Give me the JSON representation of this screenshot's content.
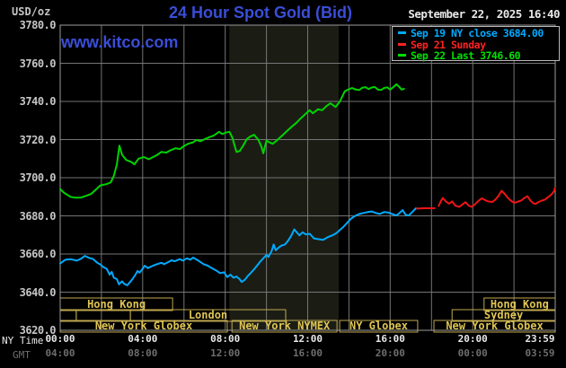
{
  "header": {
    "unit": "USD/oz",
    "title": "24 Hour Spot Gold (Bid)",
    "datetime": "September 22, 2025 16:40",
    "url": "www.kitco.com"
  },
  "axis_footer": {
    "ny_label": "NY Time",
    "gmt_label": "GMT"
  },
  "theme": {
    "background": "#000000",
    "title_blue": "#3a4ed8",
    "text_bright": "#e8e8e8",
    "text_dim": "#c6c6c6",
    "text_gray": "#6e6e6e",
    "grid": "#757575",
    "plot_border": "#9b9b9b",
    "band": "#1b1d15",
    "session_border": "#bfa94e",
    "session_text": "#dfc553",
    "cyan": "#00aaff",
    "red": "#ee1515",
    "green": "#00d300"
  },
  "legend": {
    "items": [
      {
        "text": "Sep 19 NY close 3684.00",
        "color": "#00aaff"
      },
      {
        "text": "Sep 21 Sunday",
        "color": "#ff2222"
      },
      {
        "text": "Sep 22 Last 3746.60",
        "color": "#00e000"
      }
    ]
  },
  "chart_data": {
    "type": "line",
    "title": "24 Hour Spot Gold (Bid)",
    "ylabel": "USD/oz",
    "ylim": [
      3620,
      3780
    ],
    "y_ticks": [
      "3780.0",
      "3760.0",
      "3740.0",
      "3720.0",
      "3700.0",
      "3680.0",
      "3660.0",
      "3640.0",
      "3620.0"
    ],
    "x_ticks": [
      {
        "h": 0,
        "ny": "00:00",
        "gmt": "04:00"
      },
      {
        "h": 4,
        "ny": "04:00",
        "gmt": "08:00"
      },
      {
        "h": 8,
        "ny": "08:00",
        "gmt": "12:00"
      },
      {
        "h": 12,
        "ny": "12:00",
        "gmt": "16:00"
      },
      {
        "h": 16,
        "ny": "16:00",
        "gmt": "20:00"
      },
      {
        "h": 20,
        "ny": "20:00",
        "gmt": "00:00"
      },
      {
        "h": 23.983,
        "ny": "23:59",
        "gmt": "03:59"
      }
    ],
    "grid": {
      "x_step_hours": 2,
      "y_step": 20
    },
    "shaded_band_hours": [
      8.2,
      13.5
    ],
    "sessions": [
      {
        "row": 0,
        "start_h": 0,
        "end_h": 5.45,
        "label": "Hong Kong"
      },
      {
        "row": 0,
        "start_h": 20.55,
        "end_h": 24,
        "label": "Hong Kong"
      },
      {
        "row": 1,
        "start_h": 0,
        "end_h": 0.78,
        "label": ""
      },
      {
        "row": 1,
        "start_h": 0.78,
        "end_h": 3.4,
        "label": ""
      },
      {
        "row": 1,
        "start_h": 3.4,
        "end_h": 10.93,
        "label": "London"
      },
      {
        "row": 1,
        "start_h": 19.0,
        "end_h": 24,
        "label": "Sydney"
      },
      {
        "row": 2,
        "start_h": 0,
        "end_h": 8.1,
        "label": "New York Globex"
      },
      {
        "row": 2,
        "start_h": 8.33,
        "end_h": 13.42,
        "label": "New York NYMEX"
      },
      {
        "row": 2,
        "start_h": 13.55,
        "end_h": 17.33,
        "label": "NY Globex"
      },
      {
        "row": 2,
        "start_h": 18.12,
        "end_h": 24,
        "label": "New York Globex"
      }
    ],
    "series": [
      {
        "name": "Sep 19 NY close",
        "value": "3684.00",
        "color": "#00aaff",
        "points": [
          [
            0,
            3655
          ],
          [
            0.25,
            3657
          ],
          [
            0.5,
            3657.3
          ],
          [
            0.8,
            3656.5
          ],
          [
            1.0,
            3657.5
          ],
          [
            1.2,
            3659
          ],
          [
            1.4,
            3658
          ],
          [
            1.6,
            3657.3
          ],
          [
            1.8,
            3655.4
          ],
          [
            1.95,
            3654.5
          ],
          [
            2.1,
            3653.1
          ],
          [
            2.25,
            3652.3
          ],
          [
            2.4,
            3649.2
          ],
          [
            2.5,
            3650.7
          ],
          [
            2.6,
            3647.6
          ],
          [
            2.75,
            3646.8
          ],
          [
            2.85,
            3644.1
          ],
          [
            3.0,
            3645.7
          ],
          [
            3.1,
            3644.4
          ],
          [
            3.25,
            3643.6
          ],
          [
            3.4,
            3645.5
          ],
          [
            3.5,
            3646.8
          ],
          [
            3.65,
            3649.2
          ],
          [
            3.75,
            3651.1
          ],
          [
            3.85,
            3650.2
          ],
          [
            4.0,
            3652.3
          ],
          [
            4.1,
            3653.9
          ],
          [
            4.25,
            3652.6
          ],
          [
            4.5,
            3653.9
          ],
          [
            4.7,
            3654.7
          ],
          [
            4.9,
            3655.4
          ],
          [
            5.05,
            3654.7
          ],
          [
            5.25,
            3655.8
          ],
          [
            5.4,
            3656.7
          ],
          [
            5.55,
            3656.2
          ],
          [
            5.8,
            3657.3
          ],
          [
            5.95,
            3656.5
          ],
          [
            6.15,
            3657.8
          ],
          [
            6.3,
            3657
          ],
          [
            6.45,
            3658.1
          ],
          [
            6.6,
            3657.2
          ],
          [
            6.8,
            3655.8
          ],
          [
            6.95,
            3654.7
          ],
          [
            7.15,
            3653.9
          ],
          [
            7.4,
            3652.3
          ],
          [
            7.6,
            3651.1
          ],
          [
            7.75,
            3650
          ],
          [
            7.95,
            3650.4
          ],
          [
            8.1,
            3647.9
          ],
          [
            8.25,
            3649.2
          ],
          [
            8.4,
            3647.6
          ],
          [
            8.55,
            3648.2
          ],
          [
            8.7,
            3646.8
          ],
          [
            8.8,
            3645.3
          ],
          [
            8.95,
            3646.5
          ],
          [
            9.1,
            3648.5
          ],
          [
            9.25,
            3650.2
          ],
          [
            9.4,
            3652
          ],
          [
            9.55,
            3654
          ],
          [
            9.7,
            3656
          ],
          [
            9.85,
            3657.8
          ],
          [
            10.0,
            3659.5
          ],
          [
            10.1,
            3658.5
          ],
          [
            10.25,
            3661.5
          ],
          [
            10.35,
            3665
          ],
          [
            10.45,
            3662
          ],
          [
            10.6,
            3663.5
          ],
          [
            10.75,
            3664.5
          ],
          [
            10.9,
            3665
          ],
          [
            11.05,
            3667
          ],
          [
            11.2,
            3669.5
          ],
          [
            11.35,
            3672.9
          ],
          [
            11.5,
            3671
          ],
          [
            11.6,
            3669.8
          ],
          [
            11.75,
            3671.4
          ],
          [
            11.9,
            3670.3
          ],
          [
            12.1,
            3670.6
          ],
          [
            12.3,
            3668.2
          ],
          [
            12.5,
            3667.8
          ],
          [
            12.75,
            3667.4
          ],
          [
            13.0,
            3669
          ],
          [
            13.2,
            3669.8
          ],
          [
            13.4,
            3671
          ],
          [
            13.55,
            3672.5
          ],
          [
            13.7,
            3673.9
          ],
          [
            13.9,
            3676.2
          ],
          [
            14.1,
            3678.5
          ],
          [
            14.3,
            3680
          ],
          [
            14.5,
            3681
          ],
          [
            14.7,
            3681.5
          ],
          [
            14.9,
            3682
          ],
          [
            15.1,
            3682.3
          ],
          [
            15.3,
            3681.5
          ],
          [
            15.5,
            3681
          ],
          [
            15.7,
            3682
          ],
          [
            15.9,
            3681.8
          ],
          [
            16.1,
            3681
          ],
          [
            16.3,
            3680.2
          ],
          [
            16.45,
            3681.5
          ],
          [
            16.6,
            3683
          ],
          [
            16.75,
            3680.5
          ],
          [
            16.9,
            3680.2
          ],
          [
            17.05,
            3681.8
          ],
          [
            17.25,
            3684
          ]
        ]
      },
      {
        "name": "Sep 21 Sunday",
        "color": "#ee1515",
        "points": [
          [
            17.3,
            3683.8
          ],
          [
            17.6,
            3684
          ],
          [
            17.9,
            3684
          ],
          [
            18.15,
            3684
          ],
          null,
          [
            18.35,
            3685.2
          ],
          [
            18.45,
            3687.6
          ],
          [
            18.55,
            3689.4
          ],
          [
            18.7,
            3687.6
          ],
          [
            18.85,
            3686.4
          ],
          [
            19.0,
            3687.6
          ],
          [
            19.15,
            3685.4
          ],
          [
            19.35,
            3684.7
          ],
          [
            19.5,
            3686
          ],
          [
            19.65,
            3687.2
          ],
          [
            19.8,
            3685.4
          ],
          [
            19.95,
            3684.7
          ],
          [
            20.1,
            3686
          ],
          [
            20.3,
            3688.1
          ],
          [
            20.45,
            3689.2
          ],
          [
            20.6,
            3688.3
          ],
          [
            20.75,
            3687.6
          ],
          [
            20.95,
            3687.3
          ],
          [
            21.1,
            3688.5
          ],
          [
            21.25,
            3690.5
          ],
          [
            21.4,
            3693.2
          ],
          [
            21.55,
            3691.5
          ],
          [
            21.7,
            3689.5
          ],
          [
            21.85,
            3688
          ],
          [
            22.0,
            3686.8
          ],
          [
            22.15,
            3687.3
          ],
          [
            22.35,
            3688
          ],
          [
            22.5,
            3689.3
          ],
          [
            22.65,
            3690.3
          ],
          [
            22.8,
            3688
          ],
          [
            22.95,
            3686.5
          ],
          [
            23.05,
            3686.3
          ],
          [
            23.2,
            3687.3
          ],
          [
            23.35,
            3688
          ],
          [
            23.5,
            3688.5
          ],
          [
            23.65,
            3689.8
          ],
          [
            23.8,
            3691
          ],
          [
            23.95,
            3693
          ],
          [
            23.98,
            3694.5
          ]
        ]
      },
      {
        "name": "Sep 22 Last",
        "value": "3746.60",
        "color": "#00d300",
        "points": [
          [
            0,
            3694
          ],
          [
            0.2,
            3692
          ],
          [
            0.5,
            3690
          ],
          [
            0.75,
            3689.5
          ],
          [
            1.0,
            3689.6
          ],
          [
            1.25,
            3690.5
          ],
          [
            1.5,
            3691.5
          ],
          [
            1.75,
            3694
          ],
          [
            1.95,
            3696
          ],
          [
            2.2,
            3696.5
          ],
          [
            2.45,
            3697.5
          ],
          [
            2.6,
            3701
          ],
          [
            2.75,
            3707
          ],
          [
            2.87,
            3716.8
          ],
          [
            3.0,
            3712
          ],
          [
            3.2,
            3709.3
          ],
          [
            3.45,
            3708.2
          ],
          [
            3.6,
            3707
          ],
          [
            3.8,
            3710
          ],
          [
            4.05,
            3710.8
          ],
          [
            4.3,
            3709.7
          ],
          [
            4.5,
            3710.8
          ],
          [
            4.7,
            3711.9
          ],
          [
            4.9,
            3713.5
          ],
          [
            5.15,
            3713.2
          ],
          [
            5.35,
            3714.4
          ],
          [
            5.6,
            3715.5
          ],
          [
            5.8,
            3715
          ],
          [
            6.0,
            3716.6
          ],
          [
            6.2,
            3717.8
          ],
          [
            6.45,
            3718.6
          ],
          [
            6.6,
            3719.8
          ],
          [
            6.8,
            3719.1
          ],
          [
            7.0,
            3720.2
          ],
          [
            7.25,
            3721.3
          ],
          [
            7.45,
            3722.1
          ],
          [
            7.7,
            3724.1
          ],
          [
            7.85,
            3722.9
          ],
          [
            8.05,
            3723.7
          ],
          [
            8.2,
            3724.1
          ],
          [
            8.35,
            3721
          ],
          [
            8.45,
            3717
          ],
          [
            8.55,
            3713.5
          ],
          [
            8.7,
            3714
          ],
          [
            8.85,
            3716.4
          ],
          [
            9.05,
            3720.3
          ],
          [
            9.2,
            3721.5
          ],
          [
            9.4,
            3722.5
          ],
          [
            9.6,
            3720
          ],
          [
            9.75,
            3716.5
          ],
          [
            9.85,
            3712.8
          ],
          [
            10.0,
            3719.5
          ],
          [
            10.15,
            3718.5
          ],
          [
            10.3,
            3717.8
          ],
          [
            10.45,
            3719
          ],
          [
            10.6,
            3720.5
          ],
          [
            10.8,
            3722.5
          ],
          [
            11.0,
            3724.5
          ],
          [
            11.2,
            3726.5
          ],
          [
            11.45,
            3728.8
          ],
          [
            11.65,
            3731
          ],
          [
            11.9,
            3733.5
          ],
          [
            12.1,
            3735.4
          ],
          [
            12.25,
            3733.8
          ],
          [
            12.5,
            3735.9
          ],
          [
            12.7,
            3735.4
          ],
          [
            12.9,
            3737.5
          ],
          [
            13.1,
            3739
          ],
          [
            13.35,
            3737.1
          ],
          [
            13.55,
            3739.8
          ],
          [
            13.8,
            3745.3
          ],
          [
            14.0,
            3746.4
          ],
          [
            14.15,
            3747
          ],
          [
            14.3,
            3746.3
          ],
          [
            14.5,
            3746
          ],
          [
            14.65,
            3747.2
          ],
          [
            14.8,
            3747.5
          ],
          [
            14.95,
            3746.5
          ],
          [
            15.1,
            3747.3
          ],
          [
            15.25,
            3747.6
          ],
          [
            15.4,
            3746.2
          ],
          [
            15.55,
            3746
          ],
          [
            15.7,
            3747
          ],
          [
            15.85,
            3747.4
          ],
          [
            16.0,
            3746.2
          ],
          [
            16.15,
            3747.5
          ],
          [
            16.3,
            3749
          ],
          [
            16.45,
            3747.5
          ],
          [
            16.55,
            3746.2
          ],
          [
            16.67,
            3746.6
          ]
        ]
      }
    ]
  }
}
